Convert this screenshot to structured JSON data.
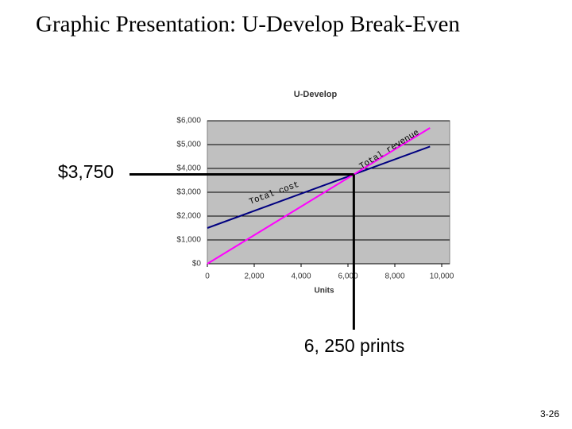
{
  "slide_title": "Graphic Presentation:  U-Develop Break-Even",
  "footer": "3-26",
  "chart_data": {
    "type": "line",
    "title": "U-Develop",
    "x_label": "Units",
    "x": [
      0,
      9500
    ],
    "series": [
      {
        "name": "Total cost",
        "color": "#000080",
        "values": [
          1500,
          4920
        ]
      },
      {
        "name": "Total revenue",
        "color": "#ff00ff",
        "values": [
          0,
          5700
        ]
      }
    ],
    "xlim": [
      0,
      10000
    ],
    "xticks": [
      0,
      {
        "value": 2000,
        "label": "2,000"
      },
      {
        "value": 4000,
        "label": "4,000"
      },
      {
        "value": 6000,
        "label": "6,000"
      },
      {
        "value": 8000,
        "label": "8,000"
      },
      {
        "value": 10000,
        "label": "10,000"
      }
    ],
    "ylim": [
      0,
      6000
    ],
    "yticks": [
      {
        "value": 0,
        "label": "$0"
      },
      {
        "value": 1000,
        "label": "$1,000"
      },
      {
        "value": 2000,
        "label": "$2,000"
      },
      {
        "value": 3000,
        "label": "$3,000"
      },
      {
        "value": 4000,
        "label": "$4,000"
      },
      {
        "value": 5000,
        "label": "$5,000"
      },
      {
        "value": 6000,
        "label": "$6,000"
      }
    ],
    "grid": true,
    "break_even": {
      "y": {
        "value": 3750,
        "label": "$3,750"
      },
      "x": {
        "value": 6250,
        "label": "6, 250 prints"
      }
    }
  }
}
